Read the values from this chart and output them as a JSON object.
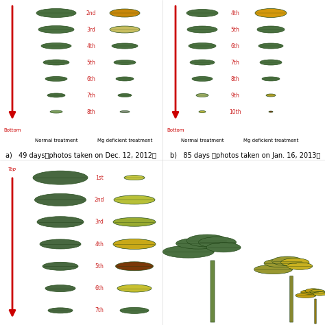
{
  "panel_a_label": "a)   49 days（photos taken on Dec. 12, 2012）",
  "panel_b_label": "b)   85 days （photos taken on Jan. 16, 2013）",
  "panel_a_left_labels": [
    "2nd",
    "3rd",
    "4th",
    "5th",
    "6th",
    "7th",
    "8th"
  ],
  "panel_b_left_labels": [
    "4th",
    "5th",
    "6th",
    "7th",
    "8th",
    "9th",
    "10th"
  ],
  "panel_c_left_labels": [
    "1st",
    "2nd",
    "3rd",
    "4th",
    "5th",
    "6th",
    "7th"
  ],
  "normal_treatment": "Normal treatment",
  "mg_deficient": "Mg deficient treatment",
  "bottom_label": "Bottom",
  "top_label": "Top",
  "bg_color": "#ffffff",
  "arrow_color": "#cc0000",
  "label_color": "#cc0000",
  "text_color": "#000000",
  "label_fontsize": 5.5,
  "caption_fontsize": 7.0,
  "panel_a": {
    "normal_widths": [
      58,
      52,
      44,
      38,
      32,
      26,
      18
    ],
    "normal_heights": [
      13,
      11,
      9,
      8,
      7,
      6,
      4
    ],
    "deficient_widths": [
      44,
      44,
      38,
      32,
      26,
      20,
      14
    ],
    "deficient_heights": [
      12,
      10,
      8,
      7,
      6,
      5,
      3
    ],
    "normal_colors": [
      "#4a7040",
      "#4a7040",
      "#4a7040",
      "#496e3e",
      "#496e3e",
      "#496e3e",
      "#8aab68"
    ],
    "deficient_colors": [
      "#c8880a",
      "#c8be60",
      "#4a7040",
      "#4a7040",
      "#4a7040",
      "#4a7040",
      "#909888"
    ]
  },
  "panel_b": {
    "normal_widths": [
      46,
      44,
      40,
      36,
      30,
      18,
      10
    ],
    "normal_heights": [
      11,
      10,
      9,
      8,
      7,
      5,
      3
    ],
    "deficient_widths": [
      46,
      40,
      36,
      32,
      26,
      14,
      6
    ],
    "deficient_heights": [
      13,
      10,
      8,
      8,
      6,
      4,
      2
    ],
    "normal_colors": [
      "#4a7040",
      "#4a7040",
      "#4a7040",
      "#4a7040",
      "#4a7040",
      "#a0b065",
      "#c8c040"
    ],
    "deficient_colors": [
      "#d4980c",
      "#4a7040",
      "#4a7040",
      "#4a7040",
      "#4a7040",
      "#c0a828",
      "#9a3808"
    ]
  },
  "panel_c": {
    "normal_widths": [
      80,
      75,
      68,
      60,
      52,
      44,
      36
    ],
    "normal_heights": [
      20,
      18,
      16,
      14,
      12,
      10,
      8
    ],
    "deficient_widths": [
      30,
      60,
      62,
      62,
      55,
      50,
      42
    ],
    "deficient_heights": [
      7,
      13,
      13,
      15,
      13,
      11,
      9
    ],
    "normal_colors": [
      "#486840",
      "#486840",
      "#486840",
      "#486840",
      "#486840",
      "#486840",
      "#486840"
    ],
    "deficient_colors": [
      "#c8c840",
      "#b8c038",
      "#98aa30",
      "#c8a818",
      "#7a3808",
      "#c8c030",
      "#4a7040"
    ]
  }
}
